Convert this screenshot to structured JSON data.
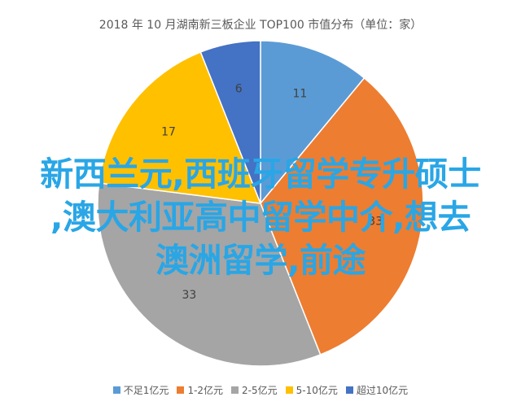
{
  "chart_data": {
    "type": "pie",
    "title": "2018 年 10 月湖南新三板企业 TOP100 市值分布（单位：家）",
    "categories": [
      "不足1亿元",
      "1-2亿元",
      "2-5亿元",
      "5-10亿元",
      "超过10亿元"
    ],
    "values": [
      11,
      33,
      33,
      17,
      6
    ],
    "colors": [
      "#5b9bd5",
      "#ed7d31",
      "#a5a5a5",
      "#ffc000",
      "#4472c4"
    ],
    "legend_position": "bottom",
    "start_angle_deg": 0,
    "direction": "clockwise"
  },
  "overlay": {
    "lines": [
      "新西兰元,西班牙留学专升硕士",
      ",澳大利亚高中留学中介,想去",
      "澳洲留学,前途"
    ],
    "color": "#29a6e6"
  }
}
